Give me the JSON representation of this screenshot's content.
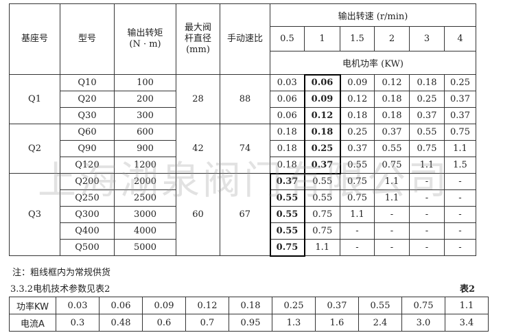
{
  "headers": {
    "base": "基座号",
    "model": "型号",
    "torque": "输出转矩",
    "torque_unit": "(N · m)",
    "stem": "最大阀杆直径",
    "stem_unit": "(mm)",
    "ratio": "手动速比",
    "speed": "输出转速 (r/min)",
    "speeds": [
      "0.5",
      "1",
      "1.5",
      "2",
      "3",
      "4"
    ],
    "power": "电机功率 (KW)"
  },
  "groups": [
    {
      "base": "Q1",
      "stem": "28",
      "ratio": "88",
      "rows": [
        {
          "model": "Q10",
          "torque": "100",
          "power": [
            "0.03",
            "0.06",
            "0.09",
            "0.12",
            "0.18",
            "0.25"
          ]
        },
        {
          "model": "Q20",
          "torque": "200",
          "power": [
            "0.06",
            "0.09",
            "0.12",
            "0.18",
            "0.25",
            "0.37"
          ]
        },
        {
          "model": "Q30",
          "torque": "300",
          "power": [
            "0.06",
            "0.12",
            "0.18",
            "0.18",
            "0.37",
            "0.37"
          ]
        }
      ]
    },
    {
      "base": "Q2",
      "stem": "42",
      "ratio": "74",
      "rows": [
        {
          "model": "Q60",
          "torque": "600",
          "power": [
            "0.18",
            "0.18",
            "0.25",
            "0.37",
            "0.55",
            "0.75"
          ]
        },
        {
          "model": "Q90",
          "torque": "900",
          "power": [
            "0.18",
            "0.25",
            "0.37",
            "0.55",
            "0.75",
            "1.1"
          ]
        },
        {
          "model": "Q120",
          "torque": "1200",
          "power": [
            "0.18",
            "0.37",
            "0.55",
            "0.75",
            "1.1",
            "1.5"
          ]
        }
      ]
    },
    {
      "base": "Q3",
      "stem": "60",
      "ratio": "67",
      "rows": [
        {
          "model": "Q200",
          "torque": "2000",
          "power": [
            "0.37",
            "0.55",
            "0.75",
            "1.1",
            "-",
            "-"
          ]
        },
        {
          "model": "Q250",
          "torque": "2500",
          "power": [
            "0.55",
            "0.55",
            "0.75",
            "1.1",
            "-",
            "-"
          ]
        },
        {
          "model": "Q300",
          "torque": "3000",
          "power": [
            "0.55",
            "0.75",
            "1.1",
            "-",
            "-",
            "-"
          ]
        },
        {
          "model": "Q400",
          "torque": "4000",
          "power": [
            "0.55",
            "0.75",
            "-",
            "-",
            "-",
            "-"
          ]
        },
        {
          "model": "Q500",
          "torque": "5000",
          "power": [
            "0.75",
            "1.1",
            "-",
            "-",
            "-",
            "-"
          ]
        }
      ]
    }
  ],
  "note": "注：粗线框内为常规供货",
  "section": "3.3.2电机技术参数见表2",
  "table2_label": "表2",
  "table2": {
    "power_label": "功率KW",
    "power": [
      "0.03",
      "0.06",
      "0.09",
      "0.12",
      "0.18",
      "0.25",
      "0.37",
      "0.55",
      "0.75",
      "1.1"
    ],
    "current_label": "电流A",
    "current": [
      "0.3",
      "0.48",
      "0.6",
      "0.7",
      "0.95",
      "1.3",
      "1.6",
      "2.4",
      "3.0",
      "3.4"
    ]
  },
  "watermark": "上海湖泉阀门有限公司"
}
